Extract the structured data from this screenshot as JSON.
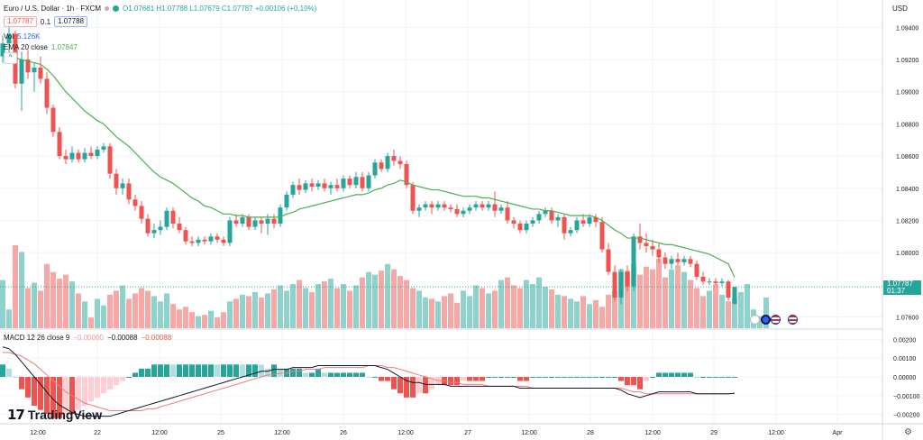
{
  "header": {
    "symbol": "Euro / U.S. Dollar · 1h · FXCM",
    "ohlc": "O1.07681 H1.07788 L1.07679 C1.07787 +0.00106 (+0.10%)",
    "sell_price": "1.07787",
    "spread": "0.1",
    "buy_price": "1.07788",
    "volume_label": "Vol",
    "volume_value": "5.126K",
    "ema_label": "EMA 20 close",
    "ema_value": "1.07847",
    "collapse_glyph": "^",
    "currency": "USD"
  },
  "macd_legend": {
    "label": "MACD 12 26 close 9",
    "v1": "−0.00000",
    "v2": "−0.00088",
    "v3": "−0.00088"
  },
  "last_price": {
    "value": "1.07787",
    "countdown": "01:37"
  },
  "brand": {
    "logo_mark": "17",
    "name": "TradingView"
  },
  "settings_icon": "gear-icon",
  "colors": {
    "up": "#26a69a",
    "down": "#ef5350",
    "vol_up": "#8ed3cb",
    "vol_down": "#f5a8a6",
    "ema": "#4caf50",
    "macd_line": "#131722",
    "signal_line": "#f07b78",
    "hist_pos_strong": "#26a69a",
    "hist_pos_weak": "#b2dfdb",
    "hist_neg_strong": "#ef5350",
    "hist_neg_weak": "#ffcdd2"
  },
  "chart_data": {
    "type": "candlestick",
    "main_axis": {
      "ticks": [
        "1.09400",
        "1.09200",
        "1.09000",
        "1.08800",
        "1.08600",
        "1.08400",
        "1.08200",
        "1.08000",
        "1.07600"
      ],
      "ylim": [
        1.0753,
        1.0957
      ]
    },
    "macd_axis": {
      "ticks": [
        "0.00200",
        "0.00100",
        "0.00000",
        "−0.00100",
        "−0.00200"
      ],
      "ylim": [
        -0.0025,
        0.0025
      ]
    },
    "x_ticks": [
      "12:00",
      "22",
      "12:00",
      "25",
      "12:00",
      "26",
      "12:00",
      "27",
      "12:00",
      "28",
      "12:00",
      "29",
      "12:00",
      "Apr"
    ],
    "candles": [
      [
        1.0922,
        1.0935,
        1.0918,
        1.093
      ],
      [
        1.093,
        1.094,
        1.0924,
        1.0936
      ],
      [
        1.0936,
        1.0938,
        1.0902,
        1.0905
      ],
      [
        1.0905,
        1.0925,
        1.0888,
        1.092
      ],
      [
        1.092,
        1.0926,
        1.0908,
        1.0912
      ],
      [
        1.0912,
        1.0918,
        1.09,
        1.0915
      ],
      [
        1.0915,
        1.0922,
        1.0905,
        1.0908
      ],
      [
        1.0908,
        1.0912,
        1.0886,
        1.089
      ],
      [
        1.089,
        1.0892,
        1.0872,
        1.0875
      ],
      [
        1.0875,
        1.0878,
        1.0858,
        1.086
      ],
      [
        1.086,
        1.0864,
        1.0855,
        1.0858
      ],
      [
        1.0858,
        1.0866,
        1.0856,
        1.0862
      ],
      [
        1.0862,
        1.0864,
        1.0856,
        1.0858
      ],
      [
        1.0858,
        1.0865,
        1.0856,
        1.0862
      ],
      [
        1.0862,
        1.0866,
        1.0858,
        1.086
      ],
      [
        1.086,
        1.0866,
        1.0858,
        1.0864
      ],
      [
        1.0864,
        1.0868,
        1.0862,
        1.0866
      ],
      [
        1.0866,
        1.0868,
        1.0846,
        1.0849
      ],
      [
        1.0849,
        1.0852,
        1.0836,
        1.084
      ],
      [
        1.084,
        1.0846,
        1.0836,
        1.0843
      ],
      [
        1.0843,
        1.0846,
        1.083,
        1.0833
      ],
      [
        1.0833,
        1.0836,
        1.0826,
        1.0829
      ],
      [
        1.0829,
        1.0832,
        1.0818,
        1.0821
      ],
      [
        1.0821,
        1.0824,
        1.081,
        1.0812
      ],
      [
        1.0812,
        1.0818,
        1.0809,
        1.0814
      ],
      [
        1.0814,
        1.082,
        1.0811,
        1.0816
      ],
      [
        1.0816,
        1.0828,
        1.0814,
        1.0826
      ],
      [
        1.0826,
        1.0828,
        1.0815,
        1.0818
      ],
      [
        1.0818,
        1.0822,
        1.0812,
        1.0814
      ],
      [
        1.0814,
        1.0816,
        1.0805,
        1.0807
      ],
      [
        1.0807,
        1.081,
        1.0804,
        1.0806
      ],
      [
        1.0806,
        1.081,
        1.0804,
        1.0808
      ],
      [
        1.0808,
        1.081,
        1.0805,
        1.0807
      ],
      [
        1.0807,
        1.0812,
        1.0805,
        1.081
      ],
      [
        1.081,
        1.0812,
        1.0806,
        1.0808
      ],
      [
        1.0808,
        1.081,
        1.0804,
        1.0806
      ],
      [
        1.0806,
        1.0822,
        1.0804,
        1.082
      ],
      [
        1.082,
        1.0824,
        1.0816,
        1.0818
      ],
      [
        1.0818,
        1.0824,
        1.0816,
        1.0822
      ],
      [
        1.0822,
        1.0824,
        1.0814,
        1.0816
      ],
      [
        1.0816,
        1.0822,
        1.0814,
        1.082
      ],
      [
        1.082,
        1.0822,
        1.0812,
        1.0818
      ],
      [
        1.0818,
        1.0824,
        1.0811,
        1.0821
      ],
      [
        1.0821,
        1.0824,
        1.0815,
        1.0818
      ],
      [
        1.0818,
        1.083,
        1.0816,
        1.0828
      ],
      [
        1.0828,
        1.0838,
        1.0826,
        1.0836
      ],
      [
        1.0836,
        1.0844,
        1.0834,
        1.0842
      ],
      [
        1.0842,
        1.0846,
        1.0836,
        1.0839
      ],
      [
        1.0839,
        1.0845,
        1.0837,
        1.0843
      ],
      [
        1.0843,
        1.0846,
        1.0838,
        1.0841
      ],
      [
        1.0841,
        1.0845,
        1.0839,
        1.0843
      ],
      [
        1.0843,
        1.0846,
        1.0838,
        1.084
      ],
      [
        1.084,
        1.0844,
        1.0836,
        1.0842
      ],
      [
        1.0842,
        1.0846,
        1.0838,
        1.084
      ],
      [
        1.084,
        1.0848,
        1.0838,
        1.0846
      ],
      [
        1.0846,
        1.0848,
        1.084,
        1.0842
      ],
      [
        1.0842,
        1.085,
        1.084,
        1.0847
      ],
      [
        1.0847,
        1.085,
        1.0838,
        1.084
      ],
      [
        1.084,
        1.085,
        1.0838,
        1.0848
      ],
      [
        1.0848,
        1.0858,
        1.0846,
        1.0856
      ],
      [
        1.0856,
        1.0858,
        1.085,
        1.0852
      ],
      [
        1.0852,
        1.0862,
        1.085,
        1.086
      ],
      [
        1.086,
        1.0864,
        1.0854,
        1.0857
      ],
      [
        1.0857,
        1.086,
        1.0852,
        1.0855
      ],
      [
        1.0855,
        1.0857,
        1.084,
        1.0842
      ],
      [
        1.0842,
        1.0844,
        1.0824,
        1.0826
      ],
      [
        1.0826,
        1.083,
        1.0822,
        1.0828
      ],
      [
        1.0828,
        1.0832,
        1.0826,
        1.083
      ],
      [
        1.083,
        1.0832,
        1.0824,
        1.0828
      ],
      [
        1.0828,
        1.0832,
        1.0826,
        1.083
      ],
      [
        1.083,
        1.0832,
        1.0826,
        1.0828
      ],
      [
        1.0828,
        1.083,
        1.0825,
        1.0827
      ],
      [
        1.0827,
        1.083,
        1.0822,
        1.0824
      ],
      [
        1.0824,
        1.0828,
        1.0822,
        1.0826
      ],
      [
        1.0826,
        1.083,
        1.0824,
        1.0828
      ],
      [
        1.0828,
        1.0832,
        1.0826,
        1.083
      ],
      [
        1.083,
        1.0832,
        1.0826,
        1.0828
      ],
      [
        1.0828,
        1.0832,
        1.0826,
        1.083
      ],
      [
        1.083,
        1.0838,
        1.0822,
        1.0826
      ],
      [
        1.0826,
        1.083,
        1.0824,
        1.0828
      ],
      [
        1.0828,
        1.0832,
        1.0818,
        1.082
      ],
      [
        1.082,
        1.0822,
        1.0815,
        1.0818
      ],
      [
        1.0818,
        1.082,
        1.0812,
        1.0814
      ],
      [
        1.0814,
        1.082,
        1.0812,
        1.0818
      ],
      [
        1.0818,
        1.0822,
        1.0816,
        1.082
      ],
      [
        1.082,
        1.0826,
        1.0818,
        1.0824
      ],
      [
        1.0824,
        1.0828,
        1.0822,
        1.0826
      ],
      [
        1.0826,
        1.0828,
        1.0818,
        1.082
      ],
      [
        1.082,
        1.0824,
        1.0816,
        1.0822
      ],
      [
        1.0822,
        1.0824,
        1.0808,
        1.0812
      ],
      [
        1.0812,
        1.0816,
        1.081,
        1.0814
      ],
      [
        1.0814,
        1.0822,
        1.0812,
        1.082
      ],
      [
        1.082,
        1.0824,
        1.0816,
        1.0818
      ],
      [
        1.0818,
        1.0824,
        1.0816,
        1.0822
      ],
      [
        1.0822,
        1.0824,
        1.0816,
        1.0819
      ],
      [
        1.0819,
        1.0822,
        1.08,
        1.0802
      ],
      [
        1.0802,
        1.0806,
        1.0786,
        1.0788
      ],
      [
        1.0788,
        1.0792,
        1.077,
        1.0772
      ],
      [
        1.0772,
        1.079,
        1.0768,
        1.0788
      ],
      [
        1.0788,
        1.0792,
        1.0776,
        1.0779
      ],
      [
        1.0779,
        1.0812,
        1.0776,
        1.081
      ],
      [
        1.081,
        1.0818,
        1.0802,
        1.0806
      ],
      [
        1.0806,
        1.0812,
        1.08,
        1.0804
      ],
      [
        1.0804,
        1.0808,
        1.0798,
        1.0802
      ],
      [
        1.0802,
        1.0806,
        1.0794,
        1.0797
      ],
      [
        1.0797,
        1.08,
        1.079,
        1.0793
      ],
      [
        1.0793,
        1.0798,
        1.079,
        1.0796
      ],
      [
        1.0796,
        1.08,
        1.0792,
        1.0794
      ],
      [
        1.0794,
        1.0798,
        1.0792,
        1.0796
      ],
      [
        1.0796,
        1.0798,
        1.0791,
        1.0793
      ],
      [
        1.0793,
        1.0795,
        1.0783,
        1.0785
      ],
      [
        1.0785,
        1.0788,
        1.078,
        1.0782
      ],
      [
        1.0782,
        1.0784,
        1.078,
        1.0782
      ],
      [
        1.0782,
        1.0784,
        1.078,
        1.0781
      ],
      [
        1.0781,
        1.0784,
        1.0779,
        1.0782
      ],
      [
        1.0782,
        1.0783,
        1.077,
        1.0772
      ],
      [
        1.07681,
        1.07788,
        1.07679,
        1.07787
      ]
    ],
    "ema": [
      1.0922,
      1.0924,
      1.0921,
      1.092,
      1.0919,
      1.0918,
      1.0917,
      1.0914,
      1.091,
      1.0905,
      1.09,
      1.0896,
      1.0892,
      1.0888,
      1.0885,
      1.0882,
      1.088,
      1.0876,
      1.0872,
      1.0869,
      1.0866,
      1.0862,
      1.0858,
      1.0854,
      1.085,
      1.0847,
      1.0845,
      1.0843,
      1.084,
      1.0837,
      1.0834,
      1.0832,
      1.0829,
      1.0828,
      1.0826,
      1.0824,
      1.0824,
      1.0823,
      1.0823,
      1.0822,
      1.0822,
      1.0822,
      1.0822,
      1.0822,
      1.0822,
      1.0824,
      1.0825,
      1.0827,
      1.0828,
      1.0829,
      1.083,
      1.0831,
      1.0832,
      1.0833,
      1.0834,
      1.0835,
      1.0836,
      1.0836,
      1.0837,
      1.0839,
      1.084,
      1.0842,
      1.0843,
      1.0845,
      1.0844,
      1.0842,
      1.0841,
      1.084,
      1.0839,
      1.0839,
      1.0838,
      1.0837,
      1.0836,
      1.0835,
      1.0835,
      1.0835,
      1.0834,
      1.0834,
      1.0833,
      1.0832,
      1.0831,
      1.083,
      1.0829,
      1.0828,
      1.0827,
      1.0827,
      1.0826,
      1.0826,
      1.0825,
      1.0824,
      1.0823,
      1.0823,
      1.0823,
      1.0823,
      1.0822,
      1.082,
      1.0817,
      1.0814,
      1.0812,
      1.0809,
      1.0809,
      1.0809,
      1.0808,
      1.0807,
      1.0806,
      1.0805,
      1.0805,
      1.0804,
      1.0803,
      1.0802,
      1.0801,
      1.08,
      1.0799,
      1.0797,
      1.0795,
      1.0793,
      1.07847
    ],
    "volume": [
      36,
      14,
      62,
      57,
      30,
      34,
      28,
      48,
      42,
      37,
      40,
      35,
      26,
      20,
      8,
      22,
      17,
      25,
      28,
      32,
      22,
      26,
      30,
      28,
      24,
      20,
      26,
      18,
      14,
      16,
      12,
      9,
      10,
      13,
      8,
      12,
      20,
      22,
      25,
      24,
      27,
      23,
      26,
      29,
      32,
      28,
      33,
      36,
      30,
      27,
      33,
      35,
      37,
      30,
      33,
      28,
      32,
      38,
      42,
      40,
      43,
      48,
      44,
      39,
      36,
      30,
      28,
      23,
      22,
      20,
      24,
      26,
      19,
      28,
      24,
      32,
      30,
      26,
      28,
      36,
      38,
      32,
      30,
      36,
      33,
      38,
      31,
      29,
      25,
      24,
      22,
      20,
      24,
      18,
      21,
      16,
      25,
      28,
      44,
      43,
      48,
      40,
      46,
      44,
      52,
      38,
      44,
      47,
      42,
      36,
      30,
      24,
      28,
      33,
      25,
      20,
      22,
      27,
      33,
      14,
      9,
      23
    ],
    "macd": {
      "line": [
        0.0016,
        0.0015,
        0.0012,
        0.0008,
        0.0004,
        0.0,
        -0.0004,
        -0.0008,
        -0.0012,
        -0.0015,
        -0.0017,
        -0.0019,
        -0.002,
        -0.0021,
        -0.0021,
        -0.0021,
        -0.0021,
        -0.0021,
        -0.002,
        -0.0019,
        -0.0018,
        -0.0017,
        -0.0016,
        -0.0015,
        -0.0014,
        -0.0013,
        -0.0012,
        -0.0011,
        -0.001,
        -0.0009,
        -0.0008,
        -0.0007,
        -0.0006,
        -0.0005,
        -0.0004,
        -0.0003,
        -0.0002,
        -0.0001,
        0.0,
        0.0001,
        0.0002,
        0.0003,
        0.0003,
        0.0004,
        0.0004,
        0.0004,
        0.0005,
        0.0005,
        0.0005,
        0.0005,
        0.0006,
        0.0006,
        0.0006,
        0.0006,
        0.0006,
        0.0006,
        0.0006,
        0.0006,
        0.0006,
        0.0006,
        0.0005,
        0.0004,
        0.0002,
        0.0,
        -0.0002,
        -0.0003,
        -0.0003,
        -0.0004,
        -0.0004,
        -0.0004,
        -0.0004,
        -0.0005,
        -0.0005,
        -0.0005,
        -0.0005,
        -0.0005,
        -0.0005,
        -0.0005,
        -0.0005,
        -0.0005,
        -0.0005,
        -0.0005,
        -0.0006,
        -0.0006,
        -0.0006,
        -0.0006,
        -0.0006,
        -0.0006,
        -0.0006,
        -0.0006,
        -0.0006,
        -0.0006,
        -0.0006,
        -0.0006,
        -0.0006,
        -0.0006,
        -0.0006,
        -0.0006,
        -0.0007,
        -0.0009,
        -0.001,
        -0.0011,
        -0.001,
        -0.0009,
        -0.0008,
        -0.0008,
        -0.0008,
        -0.0008,
        -0.0008,
        -0.0008,
        -0.0009,
        -0.0009,
        -0.0009,
        -0.0009,
        -0.0009,
        -0.0009,
        -0.00088
      ],
      "signal": [
        0.0013,
        0.0013,
        0.0012,
        0.0011,
        0.0009,
        0.0007,
        0.0004,
        0.0001,
        -0.0002,
        -0.0005,
        -0.0008,
        -0.001,
        -0.0012,
        -0.0014,
        -0.0015,
        -0.0016,
        -0.0017,
        -0.0018,
        -0.0018,
        -0.0018,
        -0.0018,
        -0.0018,
        -0.0018,
        -0.0017,
        -0.0017,
        -0.0016,
        -0.0015,
        -0.0014,
        -0.0013,
        -0.0012,
        -0.0011,
        -0.001,
        -0.0009,
        -0.0008,
        -0.0007,
        -0.0006,
        -0.0005,
        -0.0004,
        -0.0003,
        -0.0002,
        -0.0001,
        0.0,
        0.0001,
        0.0001,
        0.0002,
        0.0002,
        0.0003,
        0.0003,
        0.0004,
        0.0004,
        0.0004,
        0.0005,
        0.0005,
        0.0005,
        0.0005,
        0.0005,
        0.0005,
        0.0005,
        0.0006,
        0.0006,
        0.0006,
        0.0005,
        0.0005,
        0.0004,
        0.0003,
        0.0002,
        0.0001,
        0.0,
        -0.0001,
        -0.0002,
        -0.0002,
        -0.0003,
        -0.0003,
        -0.0004,
        -0.0004,
        -0.0004,
        -0.0004,
        -0.0005,
        -0.0005,
        -0.0005,
        -0.0005,
        -0.0005,
        -0.0005,
        -0.0005,
        -0.0006,
        -0.0006,
        -0.0006,
        -0.0006,
        -0.0006,
        -0.0006,
        -0.0006,
        -0.0006,
        -0.0006,
        -0.0006,
        -0.0006,
        -0.0006,
        -0.0006,
        -0.0006,
        -0.0006,
        -0.0007,
        -0.0008,
        -0.0008,
        -0.0009,
        -0.0009,
        -0.0009,
        -0.0009,
        -0.0009,
        -0.0009,
        -0.0009,
        -0.0009,
        -0.0009,
        -0.0009,
        -0.0009,
        -0.0009,
        -0.0009,
        -0.0009,
        -0.00088
      ]
    }
  }
}
